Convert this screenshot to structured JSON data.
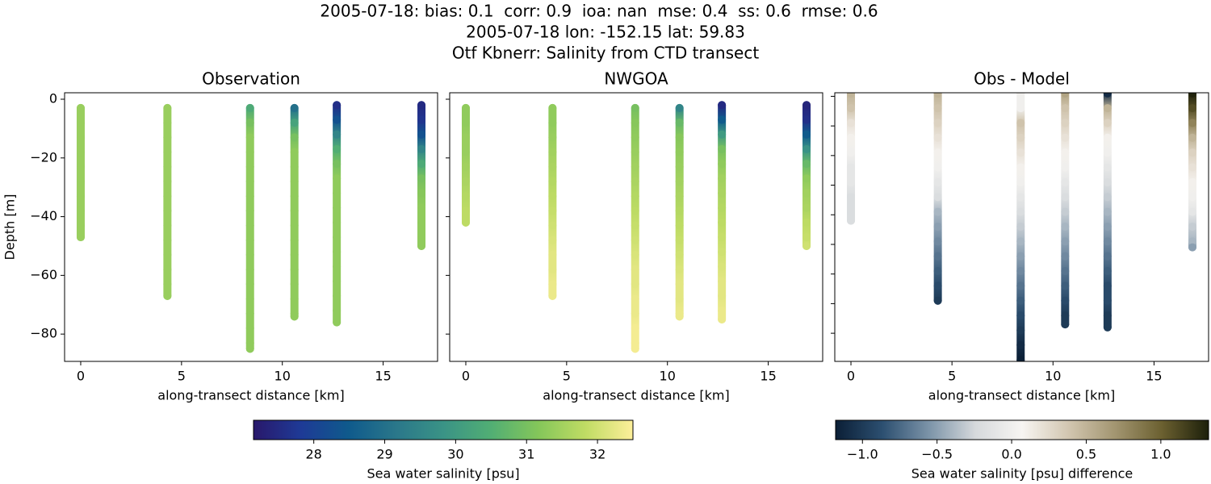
{
  "title": [
    "2005-07-18: bias: 0.1  corr: 0.9  ioa: nan  mse: 0.4  ss: 0.6  rmse: 0.6",
    "2005-07-18 lon: -152.15 lat: 59.83",
    "Otf Kbnerr: Salinity from CTD transect"
  ],
  "chart_data": [
    {
      "type": "scatter",
      "title": "Observation",
      "xlabel": "along-transect distance [km]",
      "ylabel": "Depth [m]",
      "xlim": [
        -0.8,
        17.7
      ],
      "ylim": [
        -89.3,
        2.2
      ],
      "xticks": [
        0,
        5,
        10,
        15
      ],
      "yticks": [
        {
          "value": -80,
          "label": "−80"
        },
        {
          "value": -60,
          "label": "−60"
        },
        {
          "value": -40,
          "label": "−40"
        },
        {
          "value": -20,
          "label": "−20"
        },
        0
      ],
      "ytick_labels": true,
      "series": [
        {
          "x": 0,
          "depth": [
            -3,
            -8,
            -13,
            -18,
            -23,
            -28,
            -33,
            -38,
            -43,
            -47
          ],
          "values": [
            31.4,
            31.4,
            31.4,
            31.4,
            31.4,
            31.4,
            31.4,
            31.4,
            31.4,
            31.4
          ]
        },
        {
          "x": 4.3,
          "depth": [
            -3,
            -8,
            -13,
            -18,
            -23,
            -28,
            -33,
            -38,
            -43,
            -48,
            -53,
            -58,
            -63,
            -67
          ],
          "values": [
            31.4,
            31.4,
            31.4,
            31.4,
            31.4,
            31.4,
            31.4,
            31.4,
            31.4,
            31.4,
            31.4,
            31.4,
            31.4,
            31.4
          ]
        },
        {
          "x": 8.4,
          "depth": [
            -3,
            -8,
            -13,
            -18,
            -23,
            -28,
            -33,
            -38,
            -43,
            -48,
            -53,
            -58,
            -63,
            -68,
            -73,
            -78,
            -83,
            -85
          ],
          "values": [
            30.4,
            31.0,
            31.3,
            31.3,
            31.3,
            31.3,
            31.3,
            31.3,
            31.3,
            31.3,
            31.3,
            31.3,
            31.3,
            31.3,
            31.3,
            31.3,
            31.3,
            31.3
          ]
        },
        {
          "x": 10.6,
          "depth": [
            -3,
            -8,
            -13,
            -18,
            -23,
            -28,
            -33,
            -38,
            -43,
            -48,
            -53,
            -58,
            -63,
            -68,
            -73,
            -74
          ],
          "values": [
            29.0,
            30.2,
            31.0,
            31.3,
            31.3,
            31.3,
            31.3,
            31.3,
            31.3,
            31.3,
            31.3,
            31.3,
            31.3,
            31.3,
            31.3,
            31.3
          ]
        },
        {
          "x": 12.7,
          "depth": [
            -2,
            -7,
            -12,
            -17,
            -22,
            -27,
            -32,
            -37,
            -42,
            -47,
            -52,
            -57,
            -62,
            -67,
            -72,
            -76
          ],
          "values": [
            27.6,
            28.3,
            29.5,
            30.5,
            31.0,
            31.3,
            31.3,
            31.3,
            31.3,
            31.3,
            31.3,
            31.3,
            31.3,
            31.3,
            31.3,
            31.3
          ]
        },
        {
          "x": 16.9,
          "depth": [
            -2,
            -7,
            -12,
            -17,
            -22,
            -27,
            -32,
            -37,
            -42,
            -47,
            -50
          ],
          "values": [
            27.5,
            27.7,
            28.3,
            29.5,
            30.4,
            31.0,
            31.2,
            31.3,
            31.3,
            31.3,
            31.3
          ]
        }
      ]
    },
    {
      "type": "scatter",
      "title": "NWGOA",
      "xlabel": "along-transect distance [km]",
      "xlim": [
        -0.8,
        17.7
      ],
      "ylim": [
        -89.3,
        2.2
      ],
      "xticks": [
        0,
        5,
        10,
        15
      ],
      "yticks": [
        -80,
        -60,
        -40,
        -20,
        0
      ],
      "ytick_labels": false,
      "series": [
        {
          "x": 0,
          "depth": [
            -3,
            -8,
            -13,
            -18,
            -23,
            -28,
            -33,
            -38,
            -42
          ],
          "values": [
            31.3,
            31.3,
            31.4,
            31.4,
            31.5,
            31.6,
            31.7,
            31.8,
            31.8
          ]
        },
        {
          "x": 4.3,
          "depth": [
            -3,
            -8,
            -13,
            -18,
            -23,
            -28,
            -33,
            -38,
            -43,
            -48,
            -53,
            -58,
            -63,
            -67
          ],
          "values": [
            31.3,
            31.3,
            31.4,
            31.5,
            31.6,
            31.7,
            31.8,
            31.9,
            32.0,
            32.1,
            32.2,
            32.2,
            32.3,
            32.3
          ]
        },
        {
          "x": 8.4,
          "depth": [
            -3,
            -8,
            -13,
            -18,
            -23,
            -28,
            -33,
            -38,
            -43,
            -48,
            -53,
            -58,
            -63,
            -68,
            -73,
            -78,
            -83,
            -85
          ],
          "values": [
            31.0,
            31.2,
            31.3,
            31.4,
            31.5,
            31.6,
            31.7,
            31.8,
            31.9,
            32.0,
            32.1,
            32.2,
            32.2,
            32.3,
            32.3,
            32.4,
            32.4,
            32.4
          ]
        },
        {
          "x": 10.6,
          "depth": [
            -3,
            -8,
            -13,
            -18,
            -23,
            -28,
            -33,
            -38,
            -43,
            -48,
            -53,
            -58,
            -63,
            -68,
            -73,
            -74
          ],
          "values": [
            29.5,
            30.8,
            31.2,
            31.3,
            31.4,
            31.5,
            31.6,
            31.7,
            31.8,
            31.9,
            32.0,
            32.1,
            32.2,
            32.2,
            32.3,
            32.3
          ]
        },
        {
          "x": 12.7,
          "depth": [
            -2,
            -7,
            -12,
            -17,
            -22,
            -27,
            -32,
            -37,
            -42,
            -47,
            -52,
            -57,
            -62,
            -67,
            -72,
            -75
          ],
          "values": [
            27.5,
            28.5,
            30.0,
            31.0,
            31.3,
            31.5,
            31.6,
            31.7,
            31.8,
            31.9,
            32.0,
            32.1,
            32.2,
            32.2,
            32.3,
            32.3
          ]
        },
        {
          "x": 16.9,
          "depth": [
            -2,
            -7,
            -12,
            -17,
            -22,
            -27,
            -32,
            -37,
            -42,
            -47,
            -50
          ],
          "values": [
            27.4,
            27.6,
            28.5,
            29.8,
            30.8,
            31.3,
            31.5,
            31.6,
            31.8,
            31.9,
            32.0
          ]
        }
      ]
    },
    {
      "type": "colorbar",
      "label": "Sea water salinity [psu]",
      "lim": [
        27.15,
        32.5
      ],
      "ticks": [
        28,
        29,
        30,
        31,
        32
      ],
      "colors": [
        "#29186b",
        "#1e3a96",
        "#0f5a8c",
        "#2a778a",
        "#3a9386",
        "#51ae74",
        "#84c65a",
        "#c0dc64",
        "#fdef9a"
      ]
    },
    {
      "type": "scatter",
      "title": "Obs - Model",
      "xlabel": "along-transect distance [km]",
      "xlim": [
        -0.8,
        17.7
      ],
      "ylim": [
        -89.5,
        1.2
      ],
      "xticks": [
        0,
        5,
        10,
        15
      ],
      "yticks": [
        -80,
        -70,
        -60,
        -50,
        -40,
        -30,
        -20,
        -10,
        0
      ],
      "ytick_labels": false,
      "series": [
        {
          "x": 0,
          "depth": [
            1,
            -4,
            -9,
            -14,
            -19,
            -24,
            -29,
            -34,
            -39,
            -42
          ],
          "values": [
            0.5,
            0.4,
            0.2,
            0.1,
            0,
            -0.1,
            -0.1,
            -0.2,
            -0.2,
            -0.2
          ]
        },
        {
          "x": 4.3,
          "depth": [
            1,
            -4,
            -9,
            -14,
            -19,
            -24,
            -29,
            -34,
            -39,
            -44,
            -49,
            -54,
            -59,
            -64,
            -69
          ],
          "values": [
            0.5,
            0.4,
            0.3,
            0.2,
            0.1,
            0,
            -0.1,
            -0.2,
            -0.4,
            -0.5,
            -0.6,
            -0.7,
            -0.8,
            -0.9,
            -1.0
          ]
        },
        {
          "x": 8.4,
          "depth": [
            1,
            -4,
            -9,
            -14,
            -19,
            -24,
            -29,
            -34,
            -39,
            -44,
            -49,
            -54,
            -59,
            -64,
            -69,
            -74,
            -79,
            -84,
            -89
          ],
          "values": [
            0,
            0,
            0.4,
            0.3,
            0.2,
            0.1,
            0,
            -0.1,
            -0.2,
            -0.3,
            -0.4,
            -0.5,
            -0.6,
            -0.7,
            -0.8,
            -0.9,
            -1.0,
            -1.1,
            -1.2
          ]
        },
        {
          "x": 10.6,
          "depth": [
            1,
            -4,
            -9,
            -14,
            -19,
            -24,
            -29,
            -34,
            -39,
            -44,
            -49,
            -54,
            -59,
            -64,
            -69,
            -74,
            -77
          ],
          "values": [
            0.6,
            0.4,
            0.3,
            0.2,
            0.1,
            0,
            -0.1,
            -0.2,
            -0.3,
            -0.4,
            -0.5,
            -0.6,
            -0.7,
            -0.8,
            -0.9,
            -1.0,
            -1.0
          ]
        },
        {
          "x": 12.7,
          "depth": [
            1,
            -4,
            -9,
            -14,
            -19,
            -24,
            -29,
            -34,
            -39,
            -44,
            -49,
            -54,
            -59,
            -64,
            -69,
            -74,
            -78
          ],
          "values": [
            -1.1,
            0.5,
            0.3,
            0.1,
            0,
            -0.1,
            -0.2,
            -0.3,
            -0.4,
            -0.5,
            -0.6,
            -0.7,
            -0.8,
            -0.9,
            -0.9,
            -1.0,
            -1.0
          ]
        },
        {
          "x": 16.9,
          "depth": [
            1,
            -4,
            -9,
            -14,
            -19,
            -24,
            -29,
            -34,
            -39,
            -44,
            -49,
            -51
          ],
          "values": [
            1.3,
            1.1,
            0.8,
            0.5,
            0.3,
            0.2,
            0.1,
            0,
            -0.1,
            -0.3,
            -0.4,
            -0.5
          ]
        }
      ]
    },
    {
      "type": "colorbar",
      "label": "Sea water salinity [psu] difference",
      "lim": [
        -1.18,
        1.32
      ],
      "ticks": [
        {
          "value": -1,
          "label": "−1.0"
        },
        {
          "value": -0.5,
          "label": "−0.5"
        },
        {
          "value": 0,
          "label": "0.0"
        },
        {
          "value": 0.5,
          "label": "0.5"
        },
        {
          "value": 1,
          "label": "1.0"
        }
      ],
      "colors": [
        "#0b1f36",
        "#2c4f70",
        "#7b93a8",
        "#d6d9dc",
        "#f7f5f2",
        "#d2c6b0",
        "#a29570",
        "#6b6030",
        "#1c1f0a"
      ]
    }
  ]
}
